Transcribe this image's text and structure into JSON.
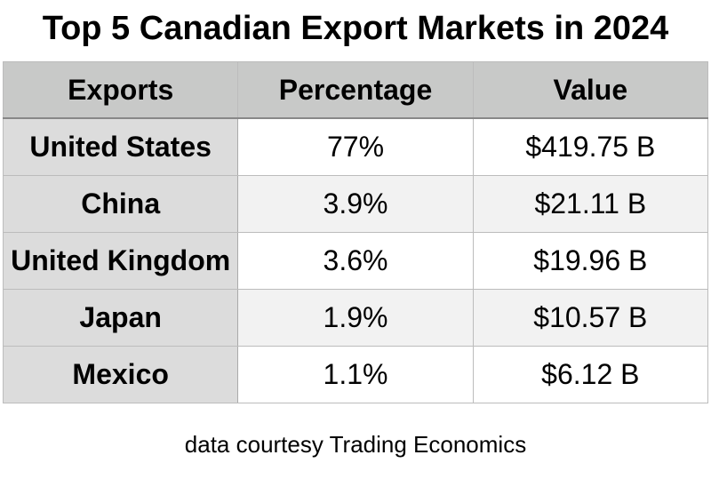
{
  "title": "Top 5 Canadian Export Markets in 2024",
  "footer": "data courtesy Trading Economics",
  "colors": {
    "header_bg": "#c8c9c8",
    "first_col_bg": "#dcdcdc",
    "alt_row_bg": "#f2f2f2"
  },
  "chart_data": {
    "type": "table",
    "title": "Top 5 Canadian Export Markets in 2024",
    "columns": [
      "Exports",
      "Percentage",
      "Value"
    ],
    "rows": [
      [
        "United States",
        "77%",
        "$419.75 B"
      ],
      [
        "China",
        "3.9%",
        "$21.11 B"
      ],
      [
        "United Kingdom",
        "3.6%",
        "$19.96 B"
      ],
      [
        "Japan",
        "1.9%",
        "$10.57 B"
      ],
      [
        "Mexico",
        "1.1%",
        "$6.12 B"
      ]
    ]
  }
}
